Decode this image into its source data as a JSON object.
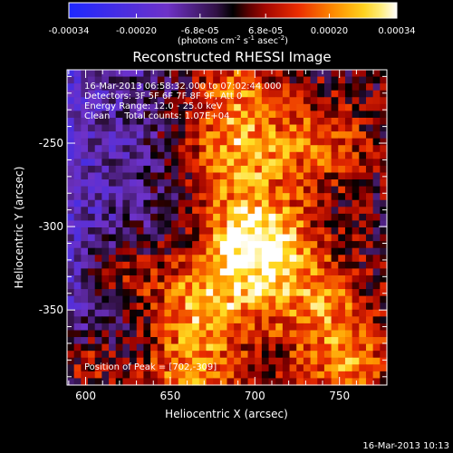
{
  "chart_data": {
    "type": "heatmap",
    "title": "Reconstructed RHESSI Image",
    "xlabel": "Heliocentric X (arcsec)",
    "ylabel": "Heliocentric Y (arcsec)",
    "xlim": [
      589,
      778
    ],
    "ylim": [
      -395,
      -206
    ],
    "xticks": [
      600,
      650,
      700,
      750
    ],
    "yticks": [
      -250,
      -300,
      -350
    ],
    "colorbar": {
      "units_prefix": "(photons cm",
      "units_e1": "-2",
      "units_mid": " s",
      "units_e2": "-1",
      "units_mid2": " asec",
      "units_e3": "-2",
      "units_suffix": ")",
      "ticks": [
        "-0.00034",
        "-0.00020",
        "-6.8e-05",
        "6.8e-05",
        "0.00020",
        "0.00034"
      ],
      "range": [
        -0.00034,
        0.00034
      ]
    },
    "annotations": [
      "16-Mar-2013 06:58:32.000 to 07:02:44.000",
      "Detectors: 3F 5F 6F 7F 8F 9F, Att 0",
      "Energy Range: 12.0 - 25.0 keV",
      "Clean     Total counts: 1.07E+04"
    ],
    "peak_label": "Position of Peak = [702,-309]",
    "peak": [
      702,
      -309
    ],
    "timestamp": "16-Mar-2013 10:13",
    "grid": false
  }
}
